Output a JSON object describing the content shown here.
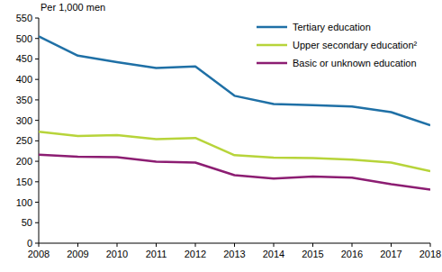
{
  "chart_data": {
    "type": "line",
    "y_label": "Per 1,000 men",
    "x": [
      2008,
      2009,
      2010,
      2011,
      2012,
      2013,
      2014,
      2015,
      2016,
      2017,
      2018
    ],
    "xlim": [
      2008,
      2018
    ],
    "xticks": [
      2008,
      2009,
      2010,
      2011,
      2012,
      2013,
      2014,
      2015,
      2016,
      2017,
      2018
    ],
    "ylim": [
      0,
      550
    ],
    "yticks": [
      0,
      50,
      100,
      150,
      200,
      250,
      300,
      350,
      400,
      450,
      500,
      550
    ],
    "grid": false,
    "legend": "upper right",
    "series": [
      {
        "name": "Tertiary education",
        "color": "#1f70a6",
        "values": [
          505,
          458,
          442,
          428,
          432,
          360,
          340,
          337,
          334,
          320,
          288
        ]
      },
      {
        "name": "Upper secondary education²",
        "color": "#b7d43a",
        "values": [
          272,
          262,
          264,
          254,
          257,
          215,
          209,
          208,
          204,
          197,
          176
        ]
      },
      {
        "name": "Basic or unknown education",
        "color": "#8c1d72",
        "values": [
          216,
          211,
          210,
          199,
          197,
          166,
          158,
          163,
          160,
          144,
          131
        ]
      }
    ]
  }
}
